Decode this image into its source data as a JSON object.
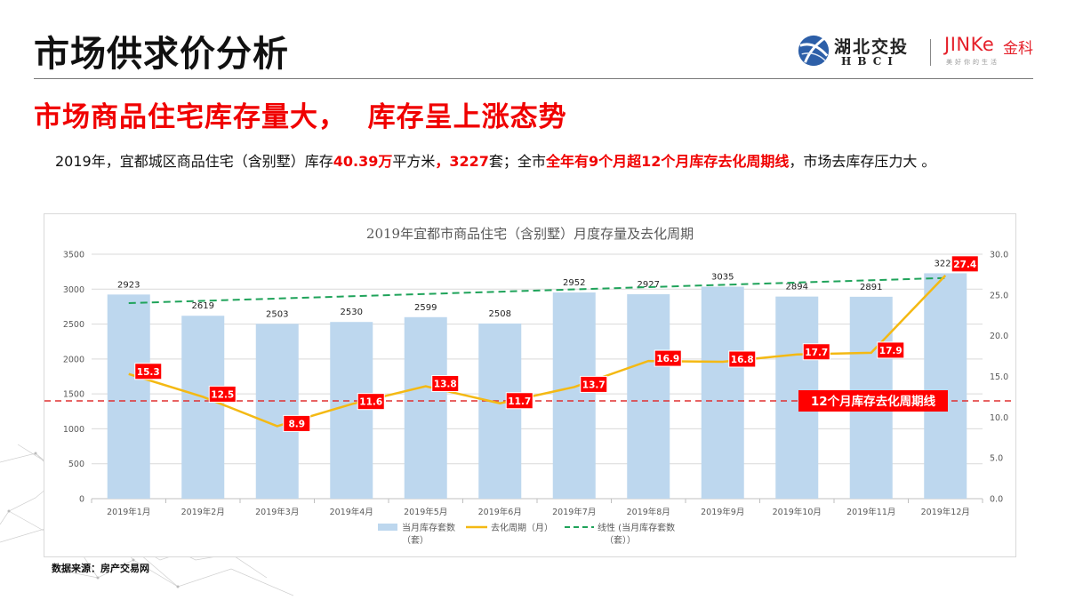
{
  "header": {
    "page_title": "市场供求价分析",
    "logo": {
      "hbci_cn": "湖北交投",
      "hbci_en": "HBCI",
      "jinke_en": "JINKe",
      "jinke_cn": "金科",
      "jinke_slogan": "美好你的生活"
    }
  },
  "subtitle": "市场商品住宅库存量大，  库存呈上涨态势",
  "summary": {
    "part1": "2019年，宜都城区商品住宅（含别墅）库存",
    "hl1": "40.39万",
    "part2": "平方米",
    "hl2": "，3227",
    "part3": "套；全市",
    "hl3": "全年有9个月超12个月库存去化周期线",
    "part4": "，市场去库存压力大 。"
  },
  "source": "数据来源：房产交易网",
  "colors": {
    "bar": "#bdd7ee",
    "line": "#f4b913",
    "trend": "#1fa35a",
    "threshold": "#e03030",
    "label_bg": "#ff0000",
    "accent_red": "#f00000"
  },
  "chart_data": {
    "type": "bar",
    "title": "2019年宜都市商品住宅（含别墅）月度存量及去化周期",
    "categories": [
      "2019年1月",
      "2019年2月",
      "2019年3月",
      "2019年4月",
      "2019年5月",
      "2019年6月",
      "2019年7月",
      "2019年8月",
      "2019年9月",
      "2019年10月",
      "2019年11月",
      "2019年12月"
    ],
    "series": [
      {
        "name": "当月库存套数（套）",
        "type": "bar",
        "axis": "left",
        "values": [
          2923,
          2619,
          2503,
          2530,
          2599,
          2508,
          2952,
          2927,
          3035,
          2894,
          2891,
          3227
        ]
      },
      {
        "name": "去化周期（月）",
        "type": "line",
        "axis": "right",
        "values": [
          15.3,
          12.5,
          8.9,
          11.6,
          13.8,
          11.7,
          13.7,
          16.9,
          16.8,
          17.7,
          17.9,
          27.4
        ]
      },
      {
        "name": "线性 (当月库存套数（套）)",
        "type": "trendline",
        "axis": "left",
        "values": [
          2800,
          2830,
          2865,
          2895,
          2930,
          2965,
          2995,
          3030,
          3060,
          3095,
          3125,
          3160
        ]
      }
    ],
    "left_axis": {
      "min": 0,
      "max": 3500,
      "ticks": [
        0,
        500,
        1000,
        1500,
        2000,
        2500,
        3000,
        3500
      ]
    },
    "right_axis": {
      "min": 0,
      "max": 30,
      "ticks": [
        "0.0",
        "5.0",
        "10.0",
        "15.0",
        "20.0",
        "25.0",
        "30.0"
      ]
    },
    "threshold": {
      "value": 12,
      "axis": "right",
      "label": "12个月库存去化周期线"
    },
    "legend": [
      {
        "label": "当月库存套数（套）",
        "type": "bar"
      },
      {
        "label": "去化周期（月）",
        "type": "line"
      },
      {
        "label": "线性 (当月库存套数（套）)",
        "type": "dashed"
      }
    ],
    "legend_position": "bottom",
    "grid": true,
    "xlabel": "",
    "ylabel": ""
  }
}
